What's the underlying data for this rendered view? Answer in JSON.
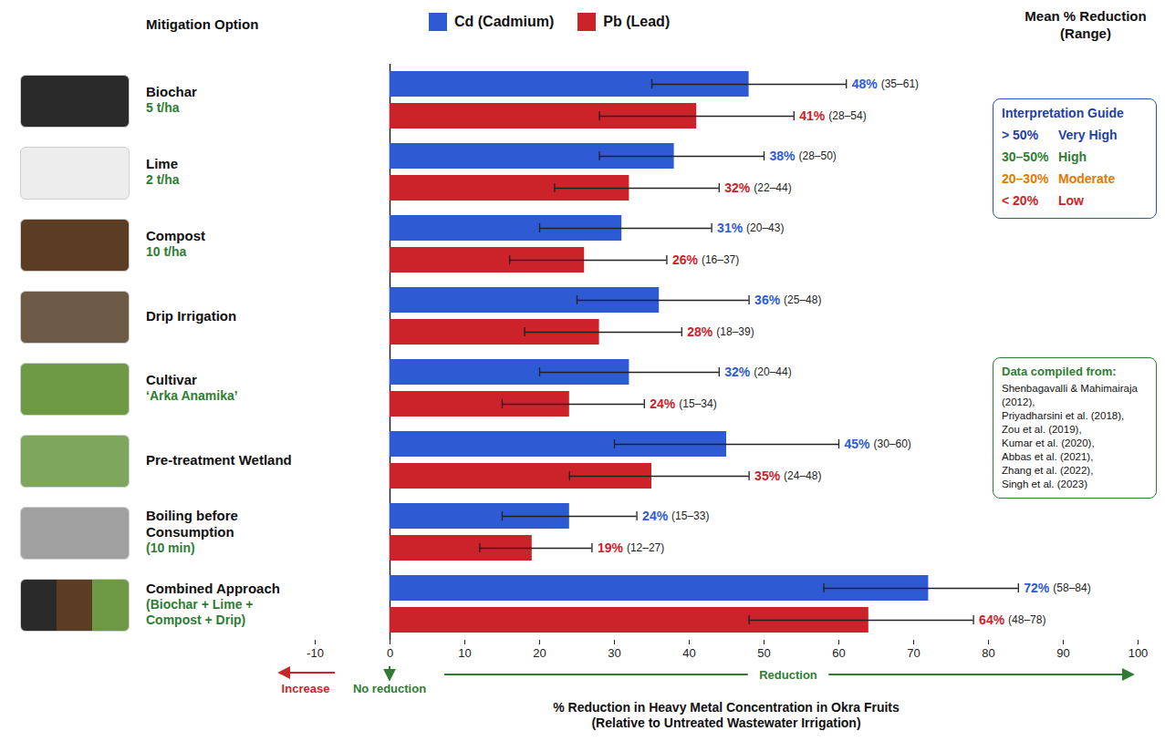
{
  "chart_data": {
    "type": "bar",
    "orientation": "horizontal",
    "ylabel": "Mitigation Option",
    "xlabel": "% Reduction in Heavy Metal Concentration in Okra Fruits (Relative to Untreated Wastewater Irrigation)",
    "categories": [
      "Biochar",
      "Lime",
      "Compost",
      "Drip Irrigation",
      "Cultivar",
      "Pre-treatment Wetland",
      "Boiling before Consumption",
      "Combined Approach"
    ],
    "category_details": [
      "5 t/ha",
      "2 t/ha",
      "10 t/ha",
      null,
      "‘Arka Anamika’",
      null,
      "(10 min)",
      "(Biochar + Lime + Compost + Drip)"
    ],
    "series": [
      {
        "name": "Cd (Cadmium)",
        "color": "#2e5bd4",
        "values": [
          48,
          38,
          31,
          36,
          32,
          45,
          24,
          72
        ],
        "value_labels": [
          "48%",
          "38%",
          "31%",
          "36%",
          "32%",
          "45%",
          "24%",
          "72%"
        ],
        "ranges": [
          [
            35,
            61
          ],
          [
            28,
            50
          ],
          [
            20,
            43
          ],
          [
            25,
            48
          ],
          [
            20,
            44
          ],
          [
            30,
            60
          ],
          [
            15,
            33
          ],
          [
            58,
            84
          ]
        ],
        "range_labels": [
          "(35–61)",
          "(28–50)",
          "(20–43)",
          "(25–48)",
          "(20–44)",
          "(30–60)",
          "(15–33)",
          "(58–84)"
        ]
      },
      {
        "name": "Pb (Lead)",
        "color": "#cc2229",
        "values": [
          41,
          32,
          26,
          28,
          24,
          35,
          19,
          64
        ],
        "value_labels": [
          "41%",
          "32%",
          "26%",
          "28%",
          "24%",
          "35%",
          "19%",
          "64%"
        ],
        "ranges": [
          [
            28,
            54
          ],
          [
            22,
            44
          ],
          [
            16,
            37
          ],
          [
            18,
            39
          ],
          [
            15,
            34
          ],
          [
            24,
            48
          ],
          [
            12,
            27
          ],
          [
            48,
            78
          ]
        ],
        "range_labels": [
          "(28–54)",
          "(22–44)",
          "(16–37)",
          "(18–39)",
          "(15–34)",
          "(24–48)",
          "(12–27)",
          "(48–78)"
        ]
      }
    ],
    "xlim": [
      -10,
      100
    ],
    "xticks": [
      -10,
      0,
      10,
      20,
      30,
      40,
      50,
      60,
      70,
      80,
      90,
      100
    ],
    "grid": false,
    "legend": "top",
    "data_labels": true,
    "labels_header": "Mean % Reduction (Range)",
    "direction_labels": {
      "increase": "Increase",
      "none": "No reduction",
      "reduction": "Reduction"
    },
    "interpretation_guide": {
      "title": "Interpretation Guide",
      "levels": [
        {
          "label": "> 50%",
          "text": "Very High",
          "color": "#1f3fa8"
        },
        {
          "label": "30–50%",
          "text": "High",
          "color": "#2e7d32"
        },
        {
          "label": "20–30%",
          "text": "Moderate",
          "color": "#e07b00"
        },
        {
          "label": "< 20%",
          "text": "Low",
          "color": "#c62828"
        }
      ]
    },
    "sources": {
      "title": "Data compiled from:",
      "items": [
        "Shenbagavalli & Mahimairaja (2012),",
        "Priyadharsini et al. (2018),",
        "Zou et al. (2019),",
        "Kumar et al. (2020),",
        "Abbas et al. (2021),",
        "Zhang et al. (2022),",
        "Singh et al. (2023)"
      ]
    }
  }
}
